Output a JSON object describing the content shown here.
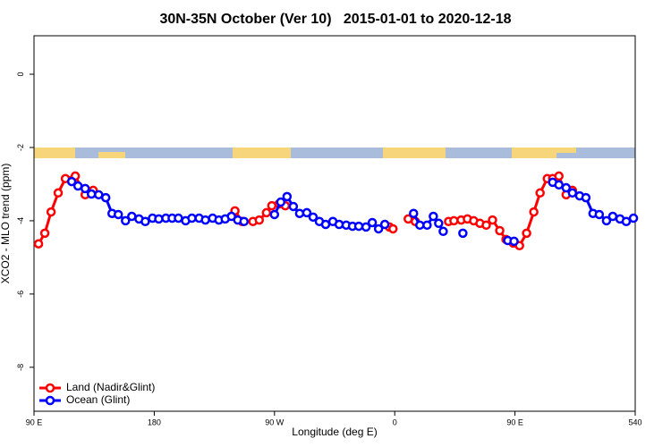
{
  "chart_data": {
    "type": "line",
    "title": "30N-35N October (Ver 10)   2015-01-01 to 2020-12-18",
    "x_label": "Longitude (deg E)",
    "y_label": "XCO2 - MLO trend (ppm)",
    "xlim": [
      90,
      540
    ],
    "ylim": [
      -9.2,
      1.05
    ],
    "xticks": [
      {
        "value": 90,
        "label": "90 E"
      },
      180,
      {
        "value": 270,
        "label": "90 W"
      },
      {
        "value": 360,
        "label": "0"
      },
      {
        "value": 450,
        "label": "90 E"
      },
      540
    ],
    "yticks": [
      0,
      -2,
      -4,
      -6,
      -8
    ],
    "legend": "bottom-left",
    "series": [
      {
        "name": "Land (Nadir&Glint)",
        "color": "#ff0000",
        "x": [
          93.4,
          98.1,
          102.8,
          108.1,
          113.5,
          120.9,
          128.3,
          134.3,
          null,
          240.4,
          245.8,
          253.9,
          258.6,
          264.0,
          268.0,
          273.4,
          278.1,
          null,
          356.0,
          358.7,
          null,
          370.1,
          375.4,
          null,
          400.3,
          404.3,
          409.7,
          414.4,
          419.1,
          423.8,
          428.5,
          433.2,
          438.6,
          443.3,
          448.7,
          453.4,
          458.7,
          464.1,
          468.8,
          474.2,
          478.2,
          482.9,
          488.3,
          493.0
        ],
        "values": [
          -4.63,
          -4.34,
          -3.76,
          -3.24,
          -2.85,
          -2.78,
          -3.29,
          -3.17,
          null,
          -3.73,
          -4.02,
          -4.02,
          -3.98,
          -3.78,
          -3.59,
          -3.54,
          -3.59,
          null,
          -4.17,
          -4.22,
          null,
          -3.95,
          -4.02,
          null,
          -4.02,
          -4.0,
          -3.98,
          -3.95,
          -4.0,
          -4.07,
          -4.12,
          -3.98,
          -4.27,
          -4.51,
          -4.61,
          -4.68,
          -4.34,
          -3.76,
          -3.24,
          -2.85,
          -2.85,
          -2.78,
          -3.29,
          -3.17
        ]
      },
      {
        "name": "Ocean (Glint)",
        "color": "#0000ff",
        "x": [
          118.2,
          122.9,
          128.3,
          133.0,
          138.4,
          143.7,
          148.4,
          153.1,
          158.5,
          163.2,
          168.6,
          173.3,
          178.7,
          183.4,
          188.7,
          193.4,
          198.1,
          203.5,
          208.2,
          213.6,
          218.3,
          223.7,
          228.4,
          233.1,
          237.8,
          242.5,
          247.2,
          null,
          270.0,
          274.7,
          279.4,
          284.1,
          288.8,
          294.2,
          298.9,
          303.6,
          308.3,
          313.7,
          318.4,
          323.7,
          328.4,
          333.1,
          338.5,
          343.2,
          347.9,
          352.6,
          null,
          374.1,
          378.8,
          384.2,
          388.9,
          392.9,
          396.3,
          null,
          411.0,
          null,
          444.6,
          449.3,
          null,
          478.2,
          482.9,
          488.3,
          493.0,
          498.4,
          503.1,
          508.4,
          513.1,
          518.5,
          523.2,
          528.6,
          533.3,
          538.7
        ],
        "values": [
          -2.93,
          -3.05,
          -3.12,
          -3.27,
          -3.29,
          -3.37,
          -3.8,
          -3.83,
          -4.0,
          -3.88,
          -3.95,
          -4.02,
          -3.93,
          -3.95,
          -3.93,
          -3.93,
          -3.93,
          -4.0,
          -3.93,
          -3.93,
          -3.98,
          -3.93,
          -3.98,
          -3.95,
          -3.88,
          -3.98,
          -4.02,
          null,
          -3.83,
          -3.49,
          -3.34,
          -3.61,
          -3.8,
          -3.78,
          -3.9,
          -4.02,
          -4.1,
          -4.02,
          -4.1,
          -4.12,
          -4.15,
          -4.15,
          -4.17,
          -4.05,
          -4.22,
          -4.1,
          null,
          -3.8,
          -4.12,
          -4.12,
          -3.88,
          -4.07,
          -4.29,
          null,
          -4.34,
          null,
          -4.54,
          -4.56,
          null,
          -2.95,
          -3.02,
          -3.1,
          -3.24,
          -3.32,
          -3.37,
          -3.8,
          -3.83,
          -4.0,
          -3.88,
          -3.95,
          -4.02,
          -3.93
        ]
      }
    ]
  }
}
